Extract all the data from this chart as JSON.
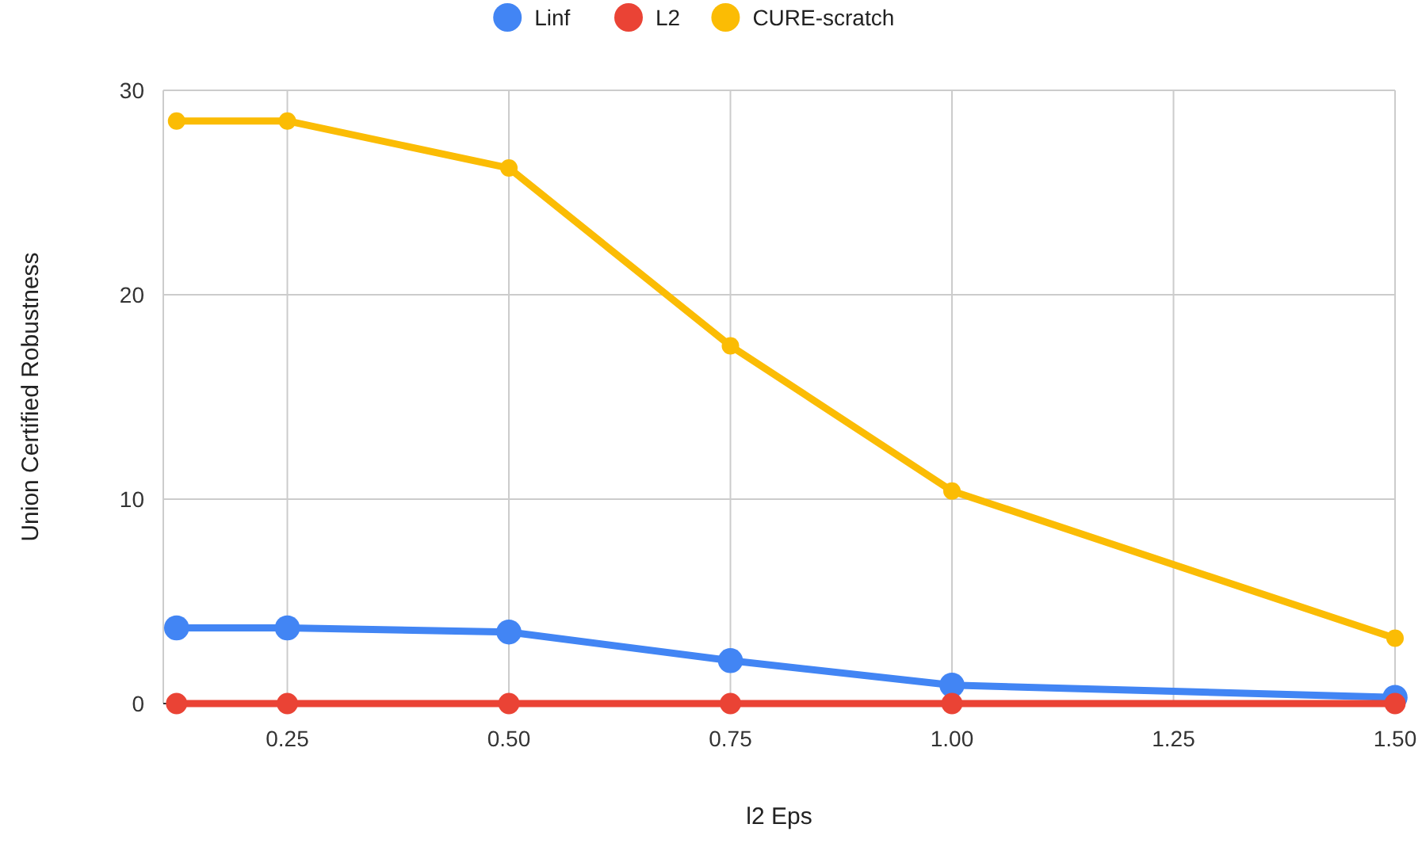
{
  "chart_data": {
    "type": "line",
    "xlabel": "l2 Eps",
    "ylabel": "Union Certified Robustness",
    "x": [
      0.125,
      0.25,
      0.5,
      0.75,
      1.0,
      1.5
    ],
    "series": [
      {
        "name": "Linf",
        "color": "#4285f4",
        "values": [
          3.7,
          3.7,
          3.5,
          2.1,
          0.9,
          0.3
        ]
      },
      {
        "name": "L2",
        "color": "#ea4335",
        "values": [
          0,
          0,
          0,
          0,
          0,
          0
        ]
      },
      {
        "name": "CURE-scratch",
        "color": "#fbbc04",
        "values": [
          28.5,
          28.5,
          26.2,
          17.5,
          10.4,
          3.2
        ]
      }
    ],
    "xlim": [
      0.11,
      1.5
    ],
    "xticks": [
      {
        "value": 0.25,
        "label": "0.25"
      },
      {
        "value": 0.5,
        "label": "0.50"
      },
      {
        "value": 0.75,
        "label": "0.75"
      },
      {
        "value": 1,
        "label": "1.00"
      },
      {
        "value": 1.25,
        "label": "1.25"
      },
      {
        "value": 1.5,
        "label": "1.50"
      }
    ],
    "ylim": [
      0,
      30
    ],
    "yticks": [
      0,
      10,
      20,
      30
    ],
    "grid": true,
    "legend": "top",
    "marker": "circle",
    "line_style": "solid"
  }
}
